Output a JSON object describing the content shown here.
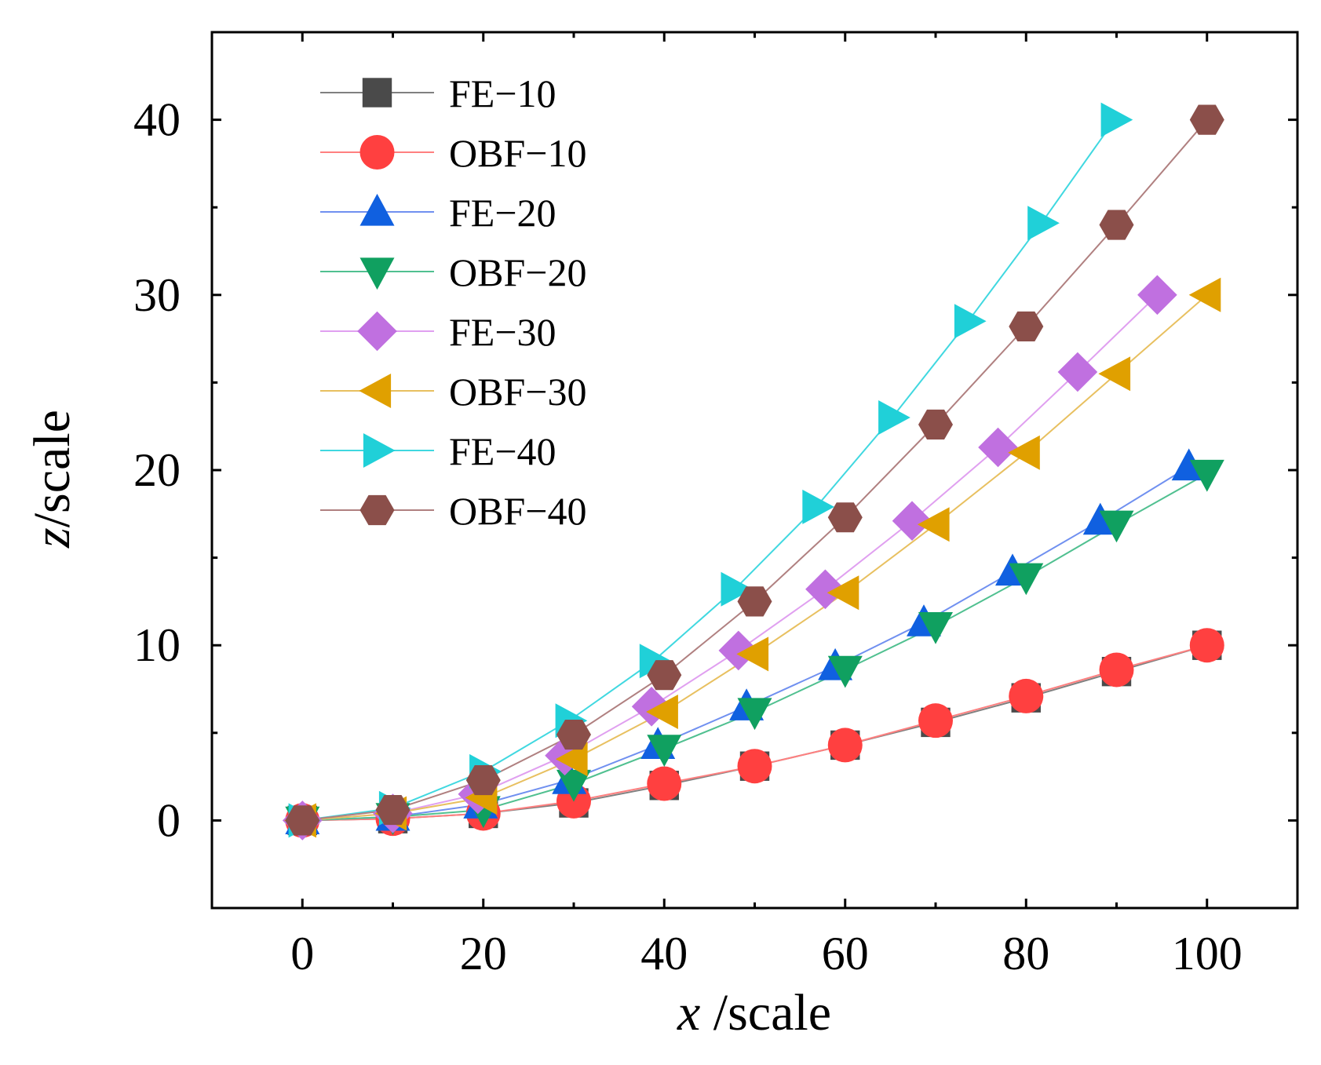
{
  "chart_data": {
    "type": "line",
    "xlabel_var": "x",
    "xlabel_unit": " /scale",
    "ylabel_var": "z",
    "ylabel_unit": "/scale",
    "xlim": [
      -10,
      110
    ],
    "ylim": [
      -5,
      45
    ],
    "x_ticks": [
      0,
      20,
      40,
      60,
      80,
      100
    ],
    "y_ticks": [
      0,
      10,
      20,
      30,
      40
    ],
    "x_tick_labels": [
      "0",
      "20",
      "40",
      "60",
      "80",
      "100"
    ],
    "y_tick_labels": [
      "0",
      "10",
      "20",
      "30",
      "40"
    ],
    "legend_position": "top-left",
    "series": [
      {
        "name": "FE−10",
        "marker": "square",
        "color": "#4a4a4a",
        "line_color": "#808080",
        "x": [
          0,
          10,
          20,
          30,
          40,
          50,
          60,
          70,
          80,
          90,
          100
        ],
        "y": [
          0,
          0.1,
          0.4,
          1.0,
          2.0,
          3.1,
          4.3,
          5.6,
          7.0,
          8.5,
          10.0
        ]
      },
      {
        "name": "OBF−10",
        "marker": "circle",
        "color": "#ff4040",
        "line_color": "#ff8080",
        "x": [
          0,
          10,
          20,
          30,
          40,
          50,
          60,
          70,
          80,
          90,
          100
        ],
        "y": [
          0,
          0.1,
          0.4,
          1.1,
          2.1,
          3.1,
          4.3,
          5.7,
          7.1,
          8.6,
          10.0
        ]
      },
      {
        "name": "FE−20",
        "marker": "triangle-up",
        "color": "#1060e0",
        "line_color": "#7090f0",
        "x": [
          0,
          10,
          19.7,
          29.5,
          39.3,
          49.1,
          58.9,
          68.7,
          78.5,
          88.2,
          98.0
        ],
        "y": [
          0,
          0.2,
          0.9,
          2.3,
          4.3,
          6.5,
          8.8,
          11.3,
          14.2,
          17.1,
          20.2
        ]
      },
      {
        "name": "OBF−20",
        "marker": "triangle-down",
        "color": "#10a060",
        "line_color": "#50c090",
        "x": [
          0,
          10,
          20,
          30,
          40,
          50,
          60,
          70,
          80,
          90,
          100
        ],
        "y": [
          0,
          0.2,
          0.6,
          2.1,
          4.1,
          6.2,
          8.6,
          11.1,
          13.9,
          16.9,
          19.8
        ]
      },
      {
        "name": "FE−30",
        "marker": "diamond",
        "color": "#c070e0",
        "line_color": "#e0a0f0",
        "x": [
          0,
          10,
          19.4,
          29.0,
          38.6,
          48.2,
          57.8,
          67.4,
          76.9,
          85.7,
          94.5
        ],
        "y": [
          0,
          0.4,
          1.5,
          3.7,
          6.5,
          9.7,
          13.2,
          17.1,
          21.3,
          25.6,
          30.0
        ]
      },
      {
        "name": "OBF−30",
        "marker": "triangle-left",
        "color": "#e0a000",
        "line_color": "#e8c060",
        "x": [
          0,
          10,
          20,
          30,
          40,
          50,
          60,
          70,
          80,
          90,
          100
        ],
        "y": [
          0,
          0.4,
          1.3,
          3.5,
          6.2,
          9.5,
          13.0,
          16.9,
          21.0,
          25.5,
          30.0
        ]
      },
      {
        "name": "FE−40",
        "marker": "triangle-right",
        "color": "#20d0d8",
        "line_color": "#40d8e0",
        "x": [
          0,
          10,
          20,
          29.5,
          38.8,
          47.8,
          56.8,
          65.2,
          73.6,
          81.7,
          89.8
        ],
        "y": [
          0,
          0.7,
          2.8,
          5.7,
          9.1,
          13.2,
          17.9,
          23.0,
          28.5,
          34.1,
          40.0
        ]
      },
      {
        "name": "OBF−40",
        "marker": "hexagon",
        "color": "#8b4f4a",
        "line_color": "#b08080",
        "x": [
          0,
          10,
          20,
          30,
          40,
          50,
          60,
          70,
          80,
          90,
          100
        ],
        "y": [
          0,
          0.6,
          2.3,
          4.9,
          8.3,
          12.5,
          17.3,
          22.6,
          28.2,
          34.0,
          40.0
        ]
      }
    ]
  }
}
